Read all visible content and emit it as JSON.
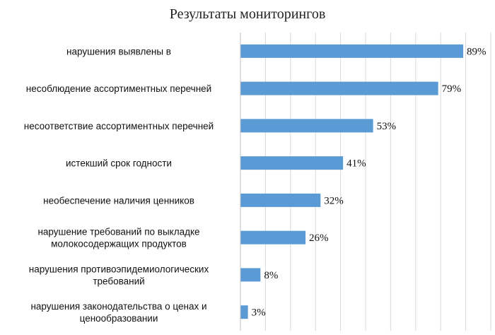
{
  "chart_data": {
    "type": "bar",
    "orientation": "horizontal",
    "title": "Результаты мониторингов",
    "categories": [
      [
        "нарушения выявлены в"
      ],
      [
        "несоблюдение ассортиментных перечней"
      ],
      [
        "несоответствие ассортиментных перечней"
      ],
      [
        "истекший срок годности"
      ],
      [
        "необеспечение наличия ценников"
      ],
      [
        "нарушение требований по выкладке",
        "молокосодержащих продуктов"
      ],
      [
        "нарушения противоэпидемиологических",
        "требований"
      ],
      [
        "нарушения законодательства о ценах и",
        "ценообразовании"
      ]
    ],
    "values": [
      89,
      79,
      53,
      41,
      32,
      26,
      8,
      3
    ],
    "value_labels": [
      "89%",
      "79%",
      "53%",
      "41%",
      "32%",
      "26%",
      "8%",
      "3%"
    ],
    "xlim": [
      0,
      100
    ],
    "grid": true,
    "bar_color": "#5b9bd5"
  }
}
